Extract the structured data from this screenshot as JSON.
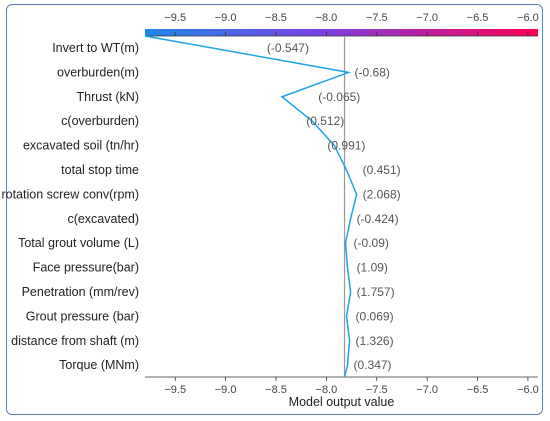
{
  "colors": {
    "low": "#1e88e5",
    "high": "#ff0051",
    "line": "#1aa3e8",
    "baseline": "#999999"
  },
  "chart_data": {
    "type": "line",
    "subtype": "shap-decision-plot",
    "xlabel": "Model output value",
    "xlim": [
      -9.8,
      -5.9
    ],
    "xticks": [
      -9.5,
      -9.0,
      -8.5,
      -8.0,
      -7.5,
      -7.0,
      -6.5,
      -6.0
    ],
    "tick_labels": [
      "−9.5",
      "−9.0",
      "−8.5",
      "−8.0",
      "−7.5",
      "−7.0",
      "−6.5",
      "−6.0"
    ],
    "base_value": -7.82,
    "colorbar": "top, blue (low) to pink (high)",
    "features": [
      {
        "name": "Invert to WT(m)",
        "value": "(-0.547)",
        "x": -9.8
      },
      {
        "name": "overburden(m)",
        "value": "(-0.68)",
        "x": -7.78
      },
      {
        "name": "Thrust (kN)",
        "value": "(-0.065)",
        "x": -8.44
      },
      {
        "name": "c(overburden)",
        "value": "(0.512)",
        "x": -8.14
      },
      {
        "name": "excavated soil (tn/hr)",
        "value": "(0.991)",
        "x": -7.92
      },
      {
        "name": "total stop time",
        "value": "(0.451)",
        "x": -7.8
      },
      {
        "name": "rotation screw conv(rpm)",
        "value": "(2.068)",
        "x": -7.7
      },
      {
        "name": "c(excavated)",
        "value": "(-0.424)",
        "x": -7.76
      },
      {
        "name": "Total grout volume (L)",
        "value": "(-0.09)",
        "x": -7.81
      },
      {
        "name": "Face pressure(bar)",
        "value": "(1.09)",
        "x": -7.79
      },
      {
        "name": "Penetration (mm/rev)",
        "value": "(1.757)",
        "x": -7.76
      },
      {
        "name": "Grout pressure (bar)",
        "value": "(0.069)",
        "x": -7.8
      },
      {
        "name": "distance from shaft (m)",
        "value": "(1.326)",
        "x": -7.77
      },
      {
        "name": "Torque (MNm)",
        "value": "(0.347)",
        "x": -7.79
      }
    ],
    "final_output": -7.82
  }
}
